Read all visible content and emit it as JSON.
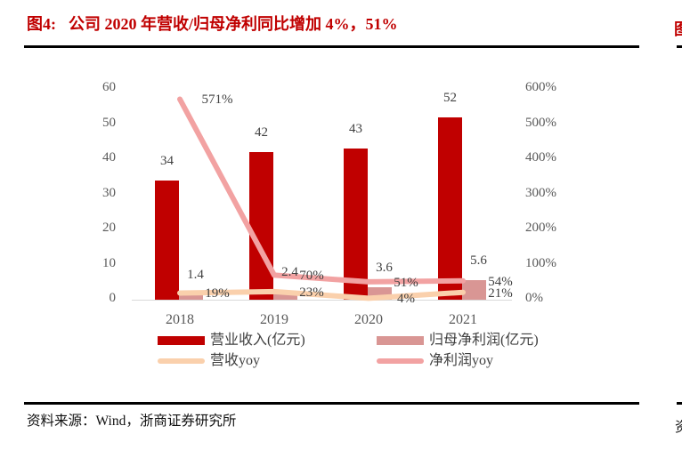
{
  "figure": {
    "number_label": "图4:",
    "title": "公司 2020 年营收/归母净利同比增加 4%，51%",
    "source": "资料来源：Wind，浙商证券研究所"
  },
  "adjacent_column": {
    "title_fragment": "图",
    "source_fragment": "资"
  },
  "colors": {
    "title_red": "#c00000",
    "revenue_bar": "#c00000",
    "profit_bar": "#d99694",
    "revenue_yoy_line": "#fad0ac",
    "profit_yoy_line": "#f2a2a2",
    "axis_text": "#595959",
    "data_label_text": "#404040",
    "axis_line": "#d9d9d9",
    "rule_black": "#000000"
  },
  "chart_data": {
    "type": "bar",
    "subtype": "bar-line combo, dual axis",
    "categories": [
      "2018",
      "2019",
      "2020",
      "2021"
    ],
    "series": [
      {
        "key": "revenue-bar",
        "name": "营业收入(亿元)",
        "type": "bar",
        "axis": "left",
        "color": "#c00000",
        "values": [
          34,
          42,
          43,
          52
        ],
        "labels": [
          "34",
          "42",
          "43",
          "52"
        ]
      },
      {
        "key": "profit-bar",
        "name": "归母净利润(亿元)",
        "type": "bar",
        "axis": "left",
        "color": "#d99694",
        "values": [
          1.4,
          2.4,
          3.6,
          5.6
        ],
        "labels": [
          "1.4",
          "2.4",
          "3.6",
          "5.6"
        ]
      },
      {
        "key": "revenue-yoy-line",
        "name": "营收yoy",
        "type": "line",
        "axis": "right",
        "color": "#fad0ac",
        "values": [
          19,
          23,
          4,
          21
        ],
        "labels": [
          "19%",
          "23%",
          "4%",
          "21%"
        ]
      },
      {
        "key": "profit-yoy-line",
        "name": "净利润yoy",
        "type": "line",
        "axis": "right",
        "color": "#f2a2a2",
        "values": [
          571,
          70,
          51,
          54
        ],
        "labels": [
          "571%",
          "70%",
          "51%",
          "54%"
        ]
      }
    ],
    "left_axis": {
      "min": 0,
      "max": 60,
      "step": 10,
      "ticks": [
        "0",
        "10",
        "20",
        "30",
        "40",
        "50",
        "60"
      ]
    },
    "right_axis": {
      "min": 0,
      "max": 600,
      "step": 100,
      "ticks": [
        "0%",
        "100%",
        "200%",
        "300%",
        "400%",
        "500%",
        "600%"
      ]
    },
    "grid": false,
    "legend_position": "bottom"
  }
}
